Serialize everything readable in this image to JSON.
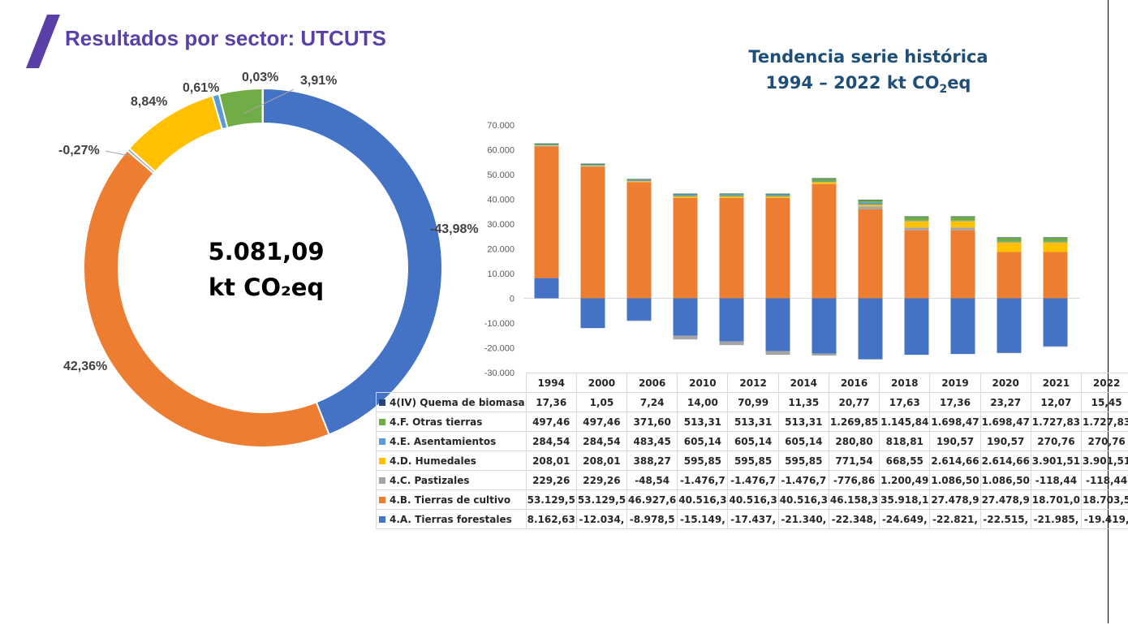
{
  "page": {
    "title": "Resultados por sector: UTCUTS"
  },
  "donut": {
    "total_value": "5.081,09",
    "total_unit": "kt CO₂eq",
    "labels": [
      "-43,98%",
      "42,36%",
      "-0,27%",
      "8,84%",
      "0,61%",
      "3,91%",
      "0,03%"
    ]
  },
  "trend": {
    "title_line1": "Tendencia serie histórica",
    "title_line2_prefix": "1994 – 2022 kt CO",
    "title_line2_sub": "2",
    "title_line2_suffix": "eq"
  },
  "chart_data": [
    {
      "type": "pie",
      "subtype": "donut",
      "labels": [
        "4.A. Tierras forestales",
        "4.B. Tierras de cultivo",
        "4.C. Pastizales",
        "4.D. Humedales",
        "4.E. Asentamientos",
        "4.F. Otras tierras",
        "4(IV) Quema de biomasa"
      ],
      "values_percent": [
        -43.98,
        42.36,
        -0.27,
        8.84,
        0.61,
        3.91,
        0.03
      ],
      "colors": [
        "#4472c4",
        "#ed7d31",
        "#a5a5a5",
        "#ffc000",
        "#5b9bd5",
        "#70ad47",
        "#264478"
      ]
    },
    {
      "type": "bar",
      "stacked": true,
      "categories": [
        "1994",
        "2000",
        "2006",
        "2010",
        "2012",
        "2014",
        "2016",
        "2018",
        "2019",
        "2020",
        "2021",
        "2022"
      ],
      "ylim": [
        -30000,
        70000
      ],
      "yticks": [
        "70.000",
        "60.000",
        "50.000",
        "40.000",
        "30.000",
        "20.000",
        "10.000",
        "0",
        "-10.000",
        "-20.000",
        "-30.000"
      ],
      "series": [
        {
          "name": "4.A. Tierras forestales",
          "color": "#4472c4",
          "values": [
            8162.63,
            -12034,
            -8978.5,
            -15149,
            -17437,
            -21340,
            -22348,
            -24649,
            -22821,
            -22515,
            -21985,
            -19419
          ],
          "display": [
            "8.162,63",
            "-12.034,",
            "-8.978,5",
            "-15.149,",
            "-17.437,",
            "-21.340,",
            "-22.348,",
            "-24.649,",
            "-22.821,",
            "-22.515,",
            "-21.985,",
            "-19.419,"
          ]
        },
        {
          "name": "4.B. Tierras de cultivo",
          "color": "#ed7d31",
          "values": [
            53129.5,
            53129.5,
            46927.6,
            40516.3,
            40516.3,
            40516.3,
            46158.3,
            35918.1,
            27478.9,
            27478.9,
            18701.0,
            18703.5
          ],
          "display": [
            "53.129,5",
            "53.129,5",
            "46.927,6",
            "40.516,3",
            "40.516,3",
            "40.516,3",
            "46.158,3",
            "35.918,1",
            "27.478,9",
            "27.478,9",
            "18.701,0",
            "18.703,5"
          ]
        },
        {
          "name": "4.C. Pastizales",
          "color": "#a5a5a5",
          "values": [
            229.26,
            229.26,
            -48.54,
            -1476.7,
            -1476.7,
            -1476.7,
            -776.86,
            1200.49,
            1086.5,
            1086.5,
            -118.44,
            -118.44
          ],
          "display": [
            "229,26",
            "229,26",
            "-48,54",
            "-1.476,7",
            "-1.476,7",
            "-1.476,7",
            "-776,86",
            "1.200,49",
            "1.086,50",
            "1.086,50",
            "-118,44",
            "-118,44"
          ]
        },
        {
          "name": "4.D. Humedales",
          "color": "#ffc000",
          "values": [
            208.01,
            208.01,
            388.27,
            595.85,
            595.85,
            595.85,
            771.54,
            668.55,
            2614.66,
            2614.66,
            3901.51,
            3901.51
          ],
          "display": [
            "208,01",
            "208,01",
            "388,27",
            "595,85",
            "595,85",
            "595,85",
            "771,54",
            "668,55",
            "2.614,66",
            "2.614,66",
            "3.901,51",
            "3.901,51"
          ]
        },
        {
          "name": "4.E. Asentamientos",
          "color": "#5b9bd5",
          "values": [
            284.54,
            284.54,
            483.45,
            605.14,
            605.14,
            605.14,
            280.8,
            818.81,
            190.57,
            190.57,
            270.76,
            270.76
          ],
          "display": [
            "284,54",
            "284,54",
            "483,45",
            "605,14",
            "605,14",
            "605,14",
            "280,80",
            "818,81",
            "190,57",
            "190,57",
            "270,76",
            "270,76"
          ]
        },
        {
          "name": "4.F. Otras tierras",
          "color": "#70ad47",
          "values": [
            497.46,
            497.46,
            371.6,
            513.31,
            513.31,
            513.31,
            1269.85,
            1145.84,
            1698.47,
            1698.47,
            1727.83,
            1727.83
          ],
          "display": [
            "497,46",
            "497,46",
            "371,60",
            "513,31",
            "513,31",
            "513,31",
            "1.269,85",
            "1.145,84",
            "1.698,47",
            "1.698,47",
            "1.727,83",
            "1.727,83"
          ]
        },
        {
          "name": "4(IV) Quema de biomasa",
          "color": "#264478",
          "values": [
            17.36,
            1.05,
            7.24,
            14.0,
            70.99,
            11.35,
            20.77,
            17.63,
            17.36,
            23.27,
            12.07,
            15.45
          ],
          "display": [
            "17,36",
            "1,05",
            "7,24",
            "14,00",
            "70,99",
            "11,35",
            "20,77",
            "17,63",
            "17,36",
            "23,27",
            "12,07",
            "15,45"
          ]
        }
      ],
      "table_row_order": [
        "4(IV) Quema de biomasa",
        "4.F. Otras tierras",
        "4.E. Asentamientos",
        "4.D. Humedales",
        "4.C. Pastizales",
        "4.B. Tierras de cultivo",
        "4.A. Tierras forestales"
      ]
    }
  ]
}
